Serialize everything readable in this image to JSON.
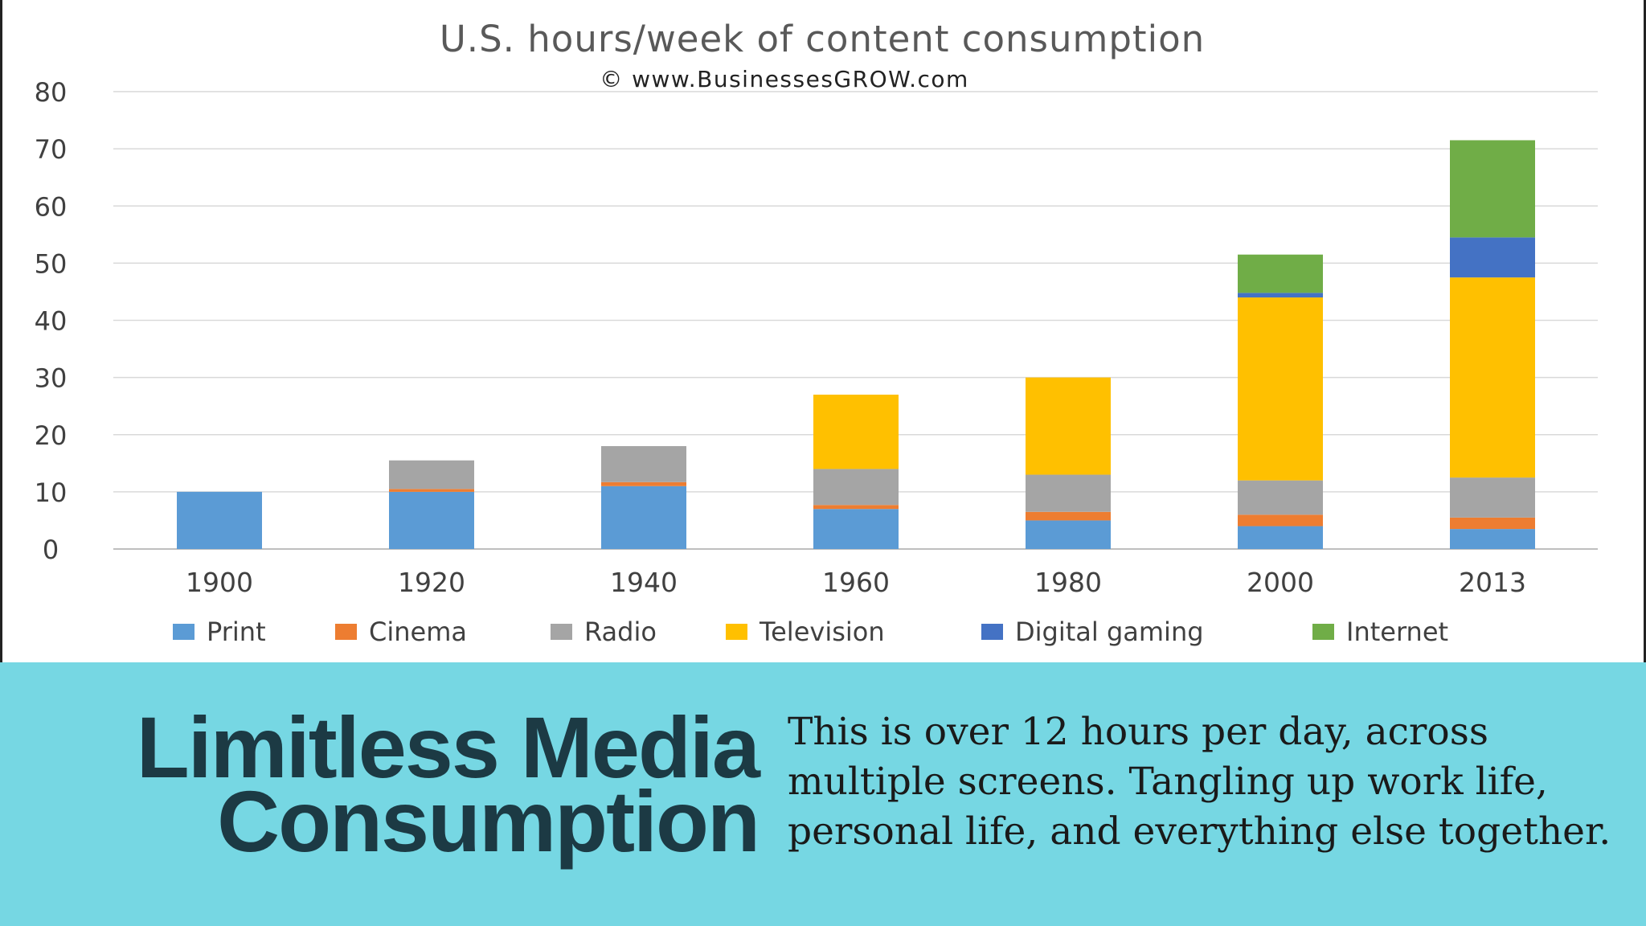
{
  "slide": {
    "headline_line1": "Limitless Media",
    "headline_line2": "Consumption",
    "blurb_line1": "This is over 12 hours per day, across",
    "blurb_line2": "multiple screens. Tangling up work life,",
    "blurb_line3": "personal life, and everything else together.",
    "band_color": "#76d7e3",
    "headline_color": "#1c3a44"
  },
  "chart_data": {
    "type": "bar",
    "stacked": true,
    "title": "U.S. hours/week of content consumption",
    "subtitle": "© www.BusinessesGROW.com",
    "xlabel": "",
    "ylabel": "",
    "ylim": [
      0,
      80
    ],
    "yticks": [
      0,
      10,
      20,
      30,
      40,
      50,
      60,
      70,
      80
    ],
    "grid": true,
    "legend_position": "bottom",
    "categories": [
      "1900",
      "1920",
      "1940",
      "1960",
      "1980",
      "2000",
      "2013"
    ],
    "series": [
      {
        "name": "Print",
        "color": "#5b9bd5",
        "values": [
          10,
          10,
          11,
          7,
          5,
          4,
          3.5
        ]
      },
      {
        "name": "Cinema",
        "color": "#ed7d31",
        "values": [
          0,
          0.5,
          0.7,
          0.7,
          1.5,
          2,
          2
        ]
      },
      {
        "name": "Radio",
        "color": "#a5a5a5",
        "values": [
          0,
          5,
          6.3,
          6.3,
          6.5,
          6,
          7
        ]
      },
      {
        "name": "Television",
        "color": "#ffc000",
        "values": [
          0,
          0,
          0,
          13,
          17,
          32,
          35
        ]
      },
      {
        "name": "Digital gaming",
        "color": "#4472c4",
        "values": [
          0,
          0,
          0,
          0,
          0,
          0.8,
          7
        ]
      },
      {
        "name": "Internet",
        "color": "#70ad47",
        "values": [
          0,
          0,
          0,
          0,
          0,
          6.7,
          17
        ]
      }
    ]
  }
}
